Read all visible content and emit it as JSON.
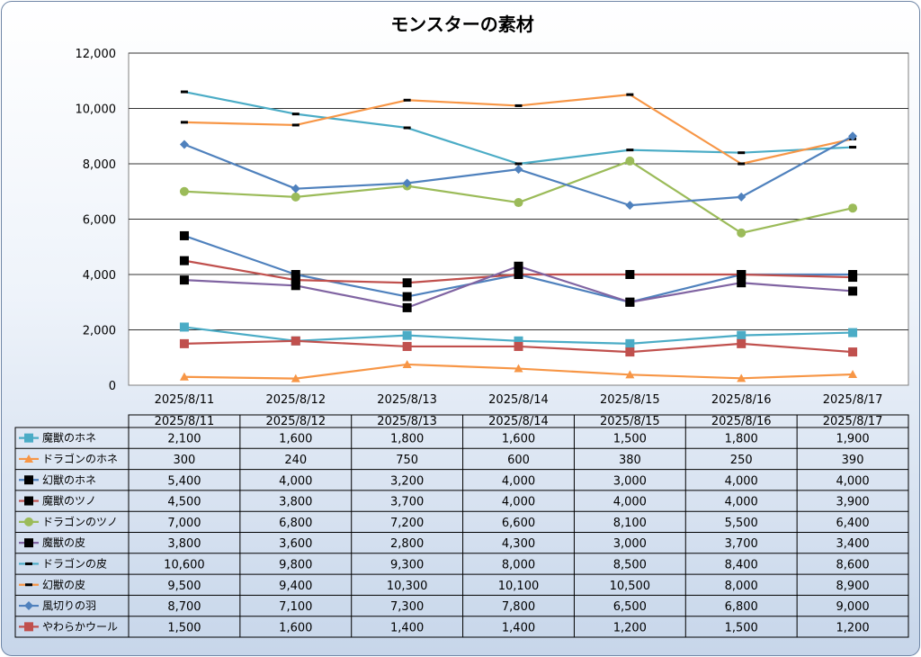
{
  "chart_data": {
    "type": "line",
    "title": "モンスターの素材",
    "xlabel": "",
    "ylabel": "",
    "ylim": [
      0,
      12000
    ],
    "yticks": [
      "0",
      "2,000",
      "4,000",
      "6,000",
      "8,000",
      "10,000",
      "12,000"
    ],
    "ytick_values": [
      0,
      2000,
      4000,
      6000,
      8000,
      10000,
      12000
    ],
    "categories": [
      "2025/8/11",
      "2025/8/12",
      "2025/8/13",
      "2025/8/14",
      "2025/8/15",
      "2025/8/16",
      "2025/8/17"
    ],
    "grid": true,
    "legend": "data-table-below",
    "series": [
      {
        "name": "魔獣のホネ",
        "color": "#4bacc6",
        "marker": "square",
        "values": [
          2100,
          1600,
          1800,
          1600,
          1500,
          1800,
          1900
        ],
        "labels": [
          "2,100",
          "1,600",
          "1,800",
          "1,600",
          "1,500",
          "1,800",
          "1,900"
        ]
      },
      {
        "name": "ドラゴンのホネ",
        "color": "#f79646",
        "marker": "triangle",
        "values": [
          300,
          240,
          750,
          600,
          380,
          250,
          390
        ],
        "labels": [
          "300",
          "240",
          "750",
          "600",
          "380",
          "250",
          "390"
        ]
      },
      {
        "name": "幻獣のホネ",
        "color": "#4f81bd",
        "marker": "black-square",
        "values": [
          5400,
          4000,
          3200,
          4000,
          3000,
          4000,
          4000
        ],
        "labels": [
          "5,400",
          "4,000",
          "3,200",
          "4,000",
          "3,000",
          "4,000",
          "4,000"
        ]
      },
      {
        "name": "魔獣のツノ",
        "color": "#c0504d",
        "marker": "black-square",
        "values": [
          4500,
          3800,
          3700,
          4000,
          4000,
          4000,
          3900
        ],
        "labels": [
          "4,500",
          "3,800",
          "3,700",
          "4,000",
          "4,000",
          "4,000",
          "3,900"
        ]
      },
      {
        "name": "ドラゴンのツノ",
        "color": "#9bbb59",
        "marker": "circle",
        "values": [
          7000,
          6800,
          7200,
          6600,
          8100,
          5500,
          6400
        ],
        "labels": [
          "7,000",
          "6,800",
          "7,200",
          "6,600",
          "8,100",
          "5,500",
          "6,400"
        ]
      },
      {
        "name": "魔獣の皮",
        "color": "#8064a2",
        "marker": "black-square",
        "values": [
          3800,
          3600,
          2800,
          4300,
          3000,
          3700,
          3400
        ],
        "labels": [
          "3,800",
          "3,600",
          "2,800",
          "4,300",
          "3,000",
          "3,700",
          "3,400"
        ]
      },
      {
        "name": "ドラゴンの皮",
        "color": "#4bacc6",
        "marker": "dash",
        "values": [
          10600,
          9800,
          9300,
          8000,
          8500,
          8400,
          8600
        ],
        "labels": [
          "10,600",
          "9,800",
          "9,300",
          "8,000",
          "8,500",
          "8,400",
          "8,600"
        ]
      },
      {
        "name": "幻獣の皮",
        "color": "#f79646",
        "marker": "dash",
        "values": [
          9500,
          9400,
          10300,
          10100,
          10500,
          8000,
          8900
        ],
        "labels": [
          "9,500",
          "9,400",
          "10,300",
          "10,100",
          "10,500",
          "8,000",
          "8,900"
        ]
      },
      {
        "name": "風切りの羽",
        "color": "#4f81bd",
        "marker": "diamond",
        "values": [
          8700,
          7100,
          7300,
          7800,
          6500,
          6800,
          9000
        ],
        "labels": [
          "8,700",
          "7,100",
          "7,300",
          "7,800",
          "6,500",
          "6,800",
          "9,000"
        ]
      },
      {
        "name": "やわらかウール",
        "color": "#c0504d",
        "marker": "square",
        "values": [
          1500,
          1600,
          1400,
          1400,
          1200,
          1500,
          1200
        ],
        "labels": [
          "1,500",
          "1,600",
          "1,400",
          "1,400",
          "1,200",
          "1,500",
          "1,200"
        ]
      }
    ]
  }
}
